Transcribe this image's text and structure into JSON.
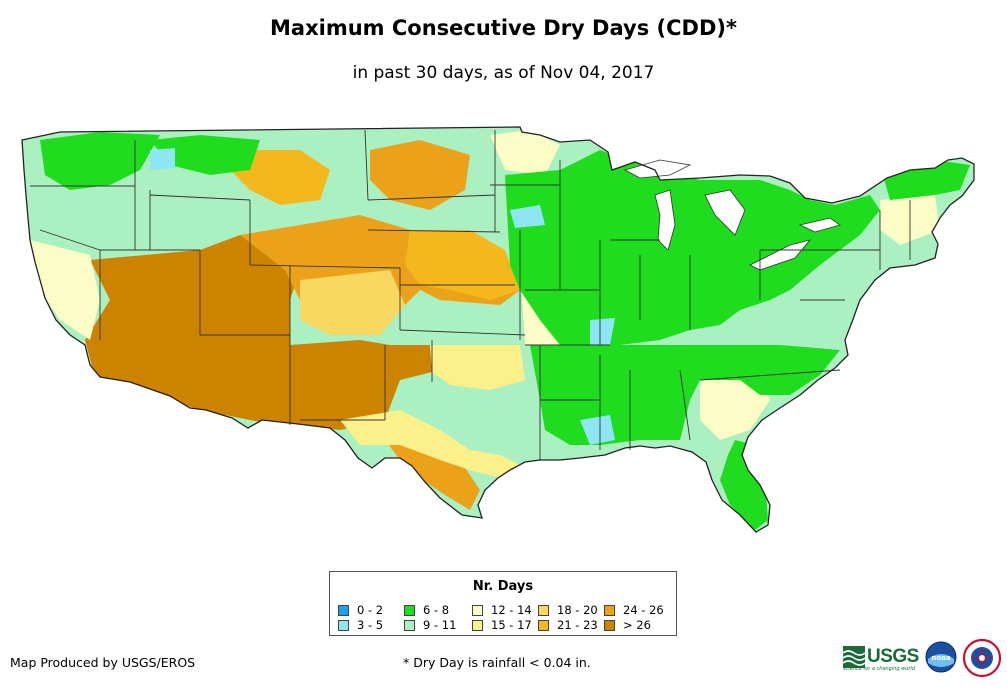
{
  "header": {
    "title": "Maximum Consecutive Dry Days (CDD)*",
    "subtitle": "in past 30 days, as of Nov 04, 2017"
  },
  "legend": {
    "title": "Nr. Days",
    "items": [
      {
        "label": "0 - 2",
        "color": "#1aa3e8"
      },
      {
        "label": "3 - 5",
        "color": "#8ee6f2"
      },
      {
        "label": "6 - 8",
        "color": "#1fdc1f"
      },
      {
        "label": "9 - 11",
        "color": "#aaf0c0"
      },
      {
        "label": "12 - 14",
        "color": "#fcfcc6"
      },
      {
        "label": "15 - 17",
        "color": "#fcf08a"
      },
      {
        "label": "18 - 20",
        "color": "#f8d860"
      },
      {
        "label": "21 - 23",
        "color": "#f5b81c"
      },
      {
        "label": "24 - 26",
        "color": "#eba21a"
      },
      {
        "label": "> 26",
        "color": "#cc8300"
      }
    ]
  },
  "footer": {
    "credit": "Map Produced by USGS/EROS",
    "note": "* Dry Day is rainfall < 0.04 in."
  },
  "logos": {
    "usgs_text": "USGS",
    "usgs_tagline": "science for a changing world",
    "noaa_text": "noaa"
  }
}
